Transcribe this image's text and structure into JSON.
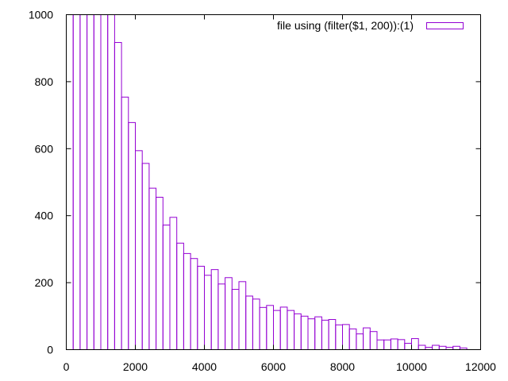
{
  "chart_data": {
    "type": "bar",
    "style": "histogram-outline",
    "bin_width": 200,
    "x_start": 0,
    "values": [
      1000,
      1000,
      1000,
      1000,
      1000,
      1000,
      1000,
      917,
      754,
      678,
      594,
      556,
      482,
      455,
      372,
      395,
      318,
      287,
      272,
      249,
      222,
      239,
      196,
      215,
      180,
      203,
      160,
      151,
      126,
      132,
      117,
      127,
      117,
      107,
      100,
      92,
      98,
      88,
      90,
      74,
      75,
      62,
      47,
      65,
      54,
      29,
      29,
      32,
      30,
      19,
      33,
      13,
      7,
      13,
      10,
      7,
      10,
      5
    ],
    "xlim": [
      0,
      12000
    ],
    "ylim": [
      0,
      1000
    ],
    "xticks": [
      0,
      2000,
      4000,
      6000,
      8000,
      10000,
      12000
    ],
    "yticks": [
      0,
      200,
      400,
      600,
      800,
      1000
    ],
    "legend": "file using (filter($1, 200)):(1)",
    "legend_position": "top-right",
    "grid": false
  },
  "colors": {
    "series": "#9400d3",
    "frame": "#000000",
    "background": "#ffffff"
  }
}
